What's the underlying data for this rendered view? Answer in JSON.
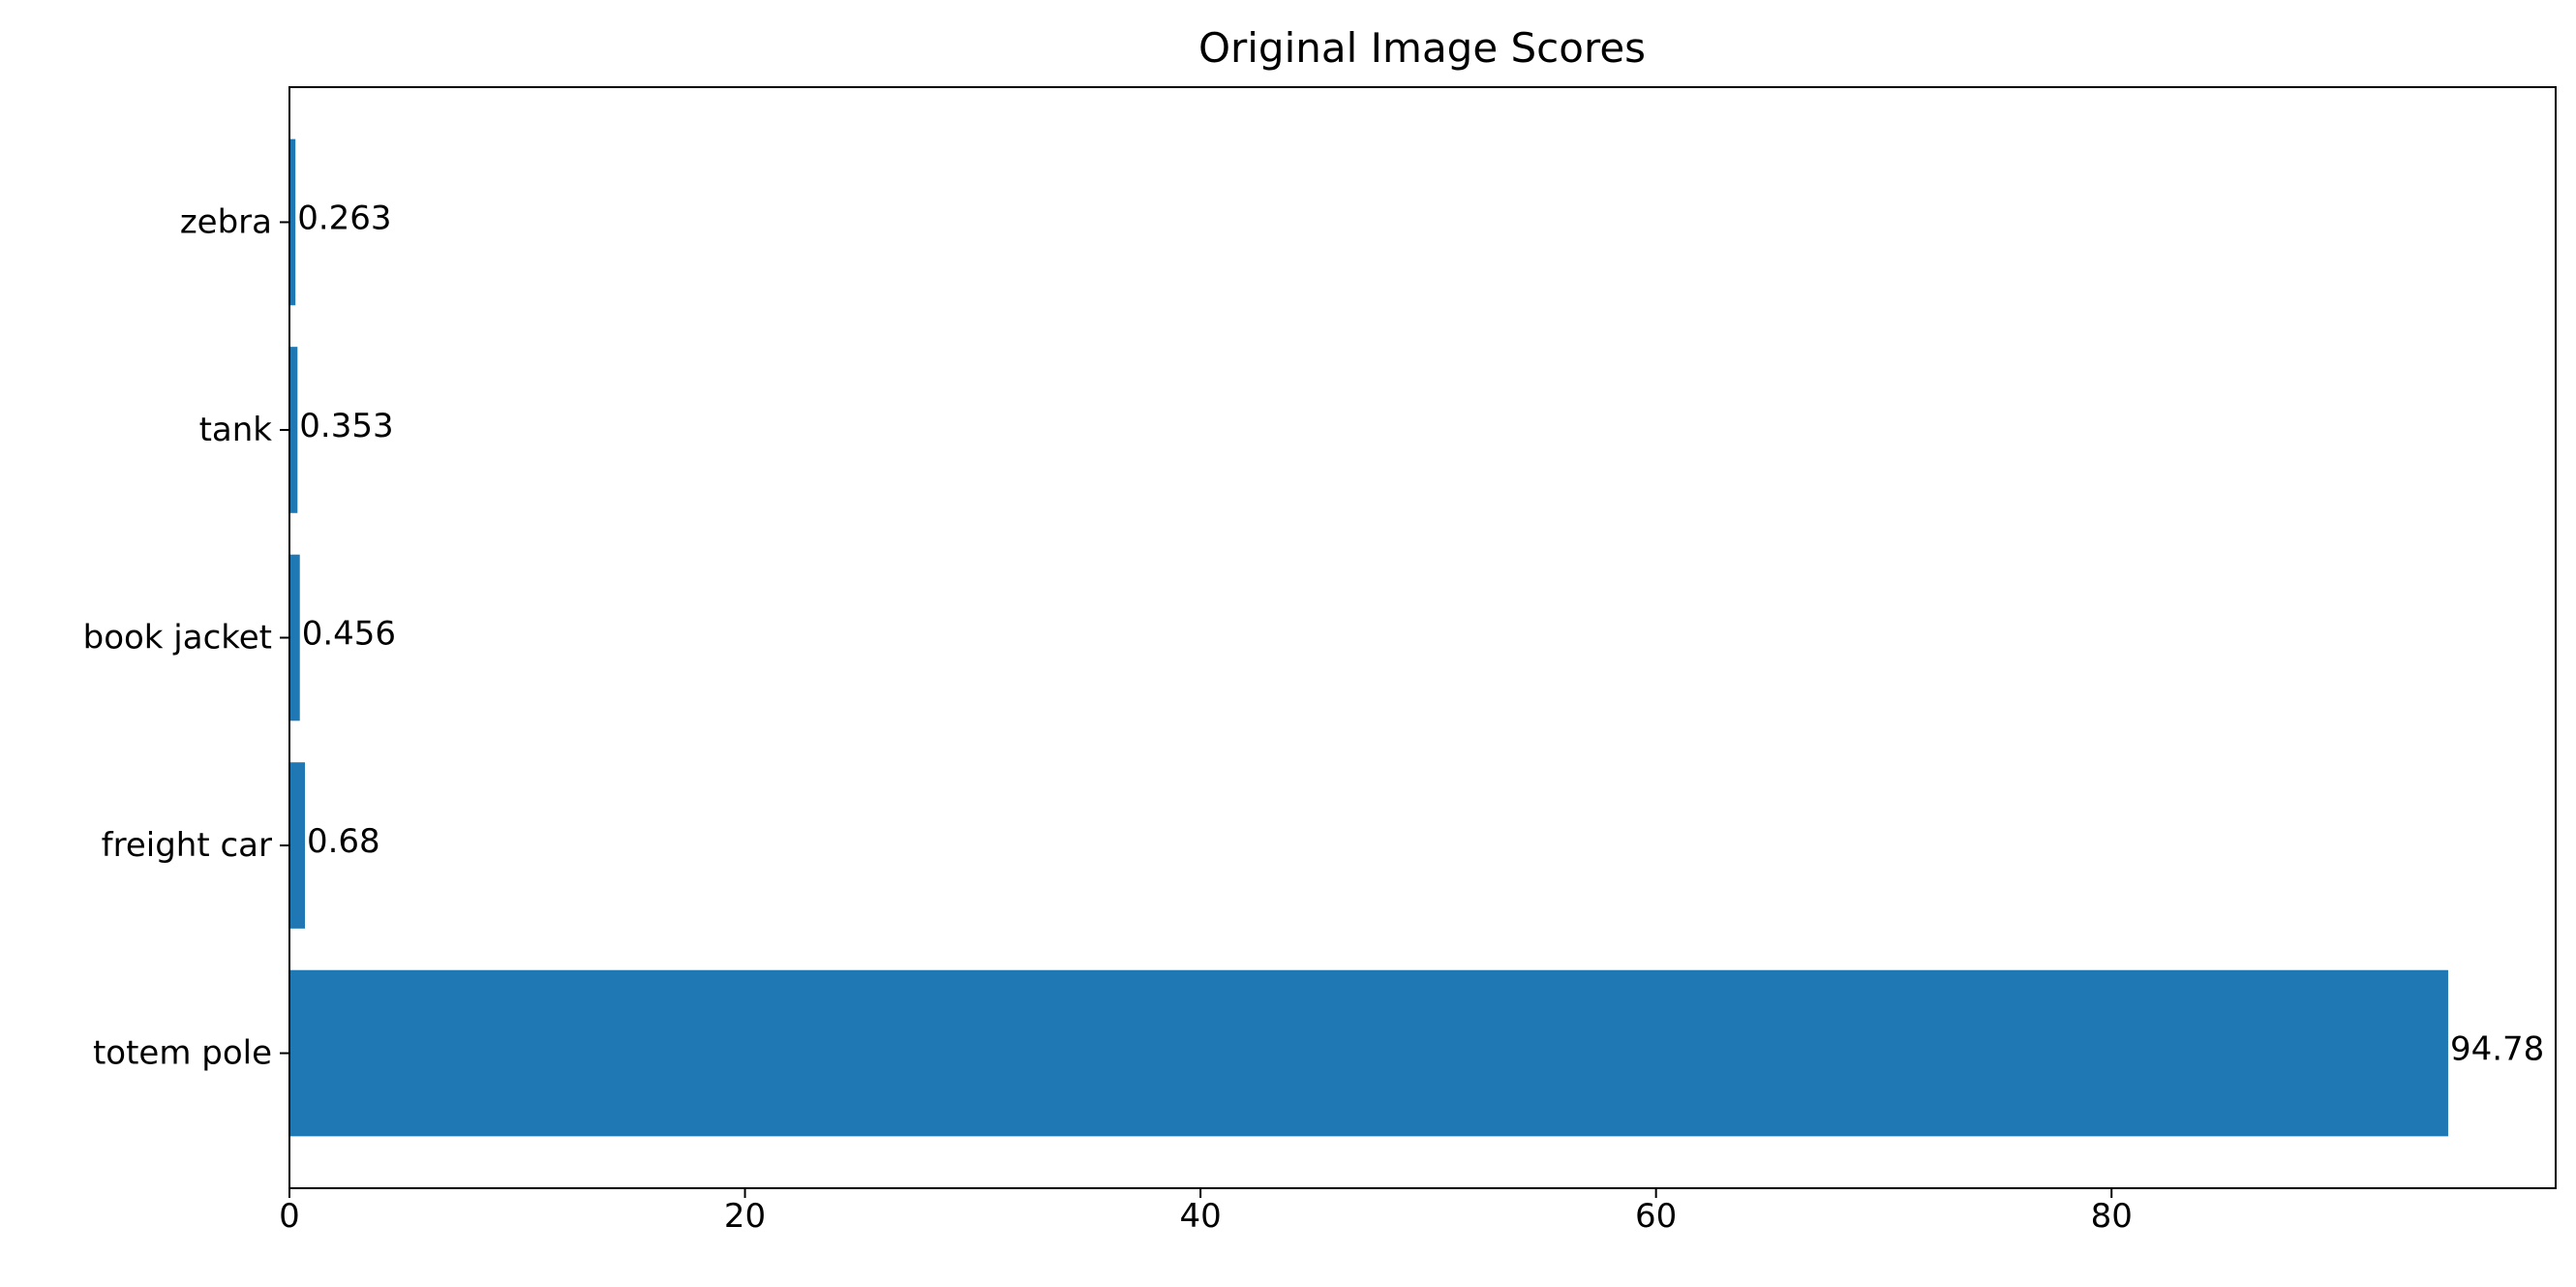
{
  "chart_data": {
    "type": "bar",
    "orientation": "horizontal",
    "title": "Original Image Scores",
    "xlabel": "",
    "ylabel": "",
    "categories": [
      "totem pole",
      "freight car",
      "book jacket",
      "tank",
      "zebra"
    ],
    "values": [
      94.78,
      0.68,
      0.456,
      0.353,
      0.263
    ],
    "data_labels": [
      "94.78",
      "0.68",
      "0.456",
      "0.353",
      "0.263"
    ],
    "xlim": [
      0,
      99.5
    ],
    "xticks": [
      0,
      20,
      40,
      60,
      80
    ],
    "grid": false,
    "legend": "none",
    "bar_color": "#1f77b4"
  }
}
